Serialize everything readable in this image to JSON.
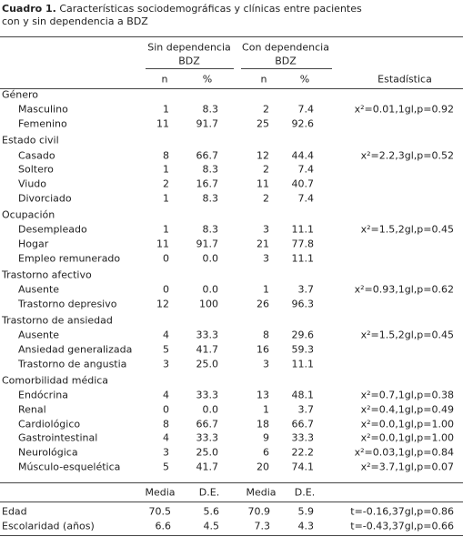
{
  "caption": {
    "label": "Cuadro 1.",
    "text": "Características sociodemográficas y clínicas entre pacientes con y sin dependencia a BDZ"
  },
  "header": {
    "groups": [
      [
        "Sin dependencia",
        "BDZ"
      ],
      [
        "Con dependencia",
        "BDZ"
      ]
    ],
    "columns": [
      "n",
      "%",
      "n",
      "%"
    ],
    "stat": "Estadística"
  },
  "sections": [
    {
      "title": "Género",
      "rows": [
        {
          "label": "Masculino",
          "values": [
            "1",
            "8.3",
            "2",
            "7.4"
          ],
          "stat": "x²=0.01,1gl,p=0.92"
        },
        {
          "label": "Femenino",
          "values": [
            "11",
            "91.7",
            "25",
            "92.6"
          ]
        }
      ]
    },
    {
      "title": "Estado civil",
      "rows": [
        {
          "label": "Casado",
          "values": [
            "8",
            "66.7",
            "12",
            "44.4"
          ],
          "stat": "x²=2.2,3gl,p=0.52"
        },
        {
          "label": "Soltero",
          "values": [
            "1",
            "8.3",
            "2",
            "7.4"
          ]
        },
        {
          "label": "Viudo",
          "values": [
            "2",
            "16.7",
            "11",
            "40.7"
          ]
        },
        {
          "label": "Divorciado",
          "values": [
            "1",
            "8.3",
            "2",
            "7.4"
          ]
        }
      ]
    },
    {
      "title": "Ocupación",
      "rows": [
        {
          "label": "Desempleado",
          "values": [
            "1",
            "8.3",
            "3",
            "11.1"
          ],
          "stat": "x²=1.5,2gl,p=0.45"
        },
        {
          "label": "Hogar",
          "values": [
            "11",
            "91.7",
            "21",
            "77.8"
          ]
        },
        {
          "label": "Empleo remunerado",
          "values": [
            "0",
            "0.0",
            "3",
            "11.1"
          ]
        }
      ]
    },
    {
      "title": "Trastorno afectivo",
      "rows": [
        {
          "label": "Ausente",
          "values": [
            "0",
            "0.0",
            "1",
            "3.7"
          ],
          "stat": "x²=0.93,1gl,p=0.62"
        },
        {
          "label": "Trastorno depresivo",
          "values": [
            "12",
            "100",
            "26",
            "96.3"
          ]
        }
      ]
    },
    {
      "title": "Trastorno de ansiedad",
      "rows": [
        {
          "label": "Ausente",
          "values": [
            "4",
            "33.3",
            "8",
            "29.6"
          ],
          "stat": "x²=1.5,2gl,p=0.45"
        },
        {
          "label": "Ansiedad generalizada",
          "values": [
            "5",
            "41.7",
            "16",
            "59.3"
          ]
        },
        {
          "label": "Trastorno de angustia",
          "values": [
            "3",
            "25.0",
            "3",
            "11.1"
          ]
        }
      ]
    },
    {
      "title": "Comorbilidad médica",
      "rows": [
        {
          "label": "Endócrina",
          "values": [
            "4",
            "33.3",
            "13",
            "48.1"
          ],
          "stat": "x²=0.7,1gl,p=0.38"
        },
        {
          "label": "Renal",
          "values": [
            "0",
            "0.0",
            "1",
            "3.7"
          ],
          "stat": "x²=0.4,1gl,p=0.49"
        },
        {
          "label": "Cardiológico",
          "values": [
            "8",
            "66.7",
            "18",
            "66.7"
          ],
          "stat": "x²=0.0,1gl,p=1.00"
        },
        {
          "label": "Gastrointestinal",
          "values": [
            "4",
            "33.3",
            "9",
            "33.3"
          ],
          "stat": "x²=0.0,1gl,p=1.00"
        },
        {
          "label": "Neurológica",
          "values": [
            "3",
            "25.0",
            "6",
            "22.2"
          ],
          "stat": "x²=0.03,1gl,p=0.84"
        },
        {
          "label": "Músculo-esquelética",
          "values": [
            "5",
            "41.7",
            "20",
            "74.1"
          ],
          "stat": "x²=3.7,1gl,p=0.07"
        }
      ]
    }
  ],
  "continuous": {
    "columns": [
      "Media",
      "D.E.",
      "Media",
      "D.E."
    ],
    "rows": [
      {
        "label": "Edad",
        "values": [
          "70.5",
          "5.6",
          "70.9",
          "5.9"
        ],
        "stat": "t=-0.16,37gl,p=0.86"
      },
      {
        "label": "Escolaridad (años)",
        "values": [
          "6.6",
          "4.5",
          "7.3",
          "4.3"
        ],
        "stat": "t=-0.43,37gl,p=0.66"
      }
    ]
  }
}
